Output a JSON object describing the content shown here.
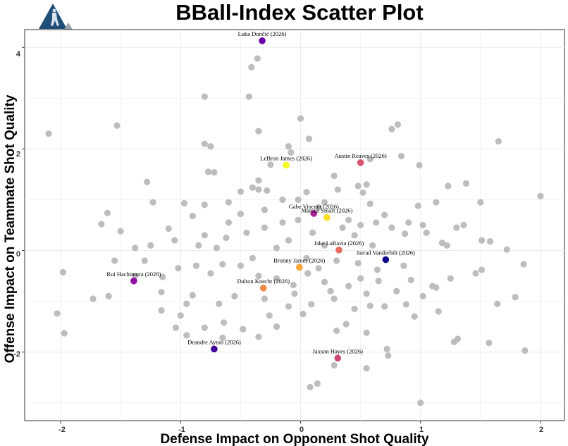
{
  "chart_data": {
    "type": "scatter",
    "title": "BBall-Index Scatter Plot",
    "xlabel": "Defense Impact on Opponent Shot Quality",
    "ylabel": "Offense Impact on Teammate Shot Quality",
    "xlim": [
      -2.3,
      2.2
    ],
    "ylim": [
      -3.35,
      4.35
    ],
    "xticks": [
      -2,
      -1,
      0,
      1,
      2
    ],
    "yticks": [
      -2,
      0,
      2,
      4
    ],
    "grid": true,
    "background_color": "#bdbdbd",
    "highlighted": [
      {
        "name": "Luka Dončić (2026)",
        "x": -0.32,
        "y": 4.13,
        "color": "#6a00a8"
      },
      {
        "name": "Austin Reaves (2026)",
        "x": 0.5,
        "y": 1.73,
        "color": "#d5546e"
      },
      {
        "name": "LeBron James (2026)",
        "x": -0.12,
        "y": 1.68,
        "color": "#f0f921"
      },
      {
        "name": "Gabe Vincent (2026)",
        "x": 0.11,
        "y": 0.73,
        "color": "#a62098"
      },
      {
        "name": "Marcus Smart (2026)",
        "x": 0.22,
        "y": 0.65,
        "color": "#f9dd25"
      },
      {
        "name": "Jake LaRavia (2026)",
        "x": 0.32,
        "y": 0.01,
        "color": "#e66c5c"
      },
      {
        "name": "Jarrad Vanderbilt (2026)",
        "x": 0.71,
        "y": -0.18,
        "color": "#0d0887"
      },
      {
        "name": "Bronny James (2026)",
        "x": -0.01,
        "y": -0.33,
        "color": "#fca636"
      },
      {
        "name": "Dalton Knecht (2026)",
        "x": -0.31,
        "y": -0.74,
        "color": "#f48849"
      },
      {
        "name": "Rui Hachimura (2026)",
        "x": -1.39,
        "y": -0.6,
        "color": "#8f0da4"
      },
      {
        "name": "Deandre Ayton (2026)",
        "x": -0.72,
        "y": -1.94,
        "color": "#41049d"
      },
      {
        "name": "Jaxson Hayes (2026)",
        "x": 0.31,
        "y": -2.12,
        "color": "#cc4778"
      }
    ],
    "background": [
      [
        -2.1,
        2.3
      ],
      [
        -1.53,
        2.46
      ],
      [
        -0.8,
        3.03
      ],
      [
        -0.43,
        3.03
      ],
      [
        -0.41,
        3.61
      ],
      [
        -0.36,
        3.78
      ],
      [
        0,
        2.6
      ],
      [
        0.07,
        2.2
      ],
      [
        -0.35,
        2.35
      ],
      [
        -0.8,
        2.1
      ],
      [
        -0.75,
        2.05
      ],
      [
        -0.1,
        2.05
      ],
      [
        -0.08,
        1.93
      ],
      [
        0.76,
        2.39
      ],
      [
        0.81,
        2.48
      ],
      [
        1.65,
        2.15
      ],
      [
        0.84,
        1.86
      ],
      [
        0.58,
        1.8
      ],
      [
        0.99,
        1.68
      ],
      [
        -1.28,
        1.35
      ],
      [
        -0.77,
        1.55
      ],
      [
        -0.72,
        1.54
      ],
      [
        -0.25,
        1.69
      ],
      [
        -0.35,
        1.38
      ],
      [
        0.28,
        1.47
      ],
      [
        0.48,
        1.27
      ],
      [
        0.55,
        1.3
      ],
      [
        -1.23,
        0.95
      ],
      [
        -1.61,
        0.74
      ],
      [
        -1.66,
        0.52
      ],
      [
        -0.97,
        0.93
      ],
      [
        -0.9,
        0.68
      ],
      [
        -0.8,
        0.9
      ],
      [
        -0.6,
        0.95
      ],
      [
        -0.5,
        1.16
      ],
      [
        -0.4,
        1.24
      ],
      [
        -0.35,
        1.2
      ],
      [
        -0.28,
        1.18
      ],
      [
        -0.15,
        1.0
      ],
      [
        -0.02,
        1.0
      ],
      [
        0.05,
        1.15
      ],
      [
        0.2,
        0.95
      ],
      [
        0.31,
        1.2
      ],
      [
        0.52,
        1.14
      ],
      [
        0.58,
        0.92
      ],
      [
        0.98,
        0.88
      ],
      [
        1.13,
        0.95
      ],
      [
        1.5,
        0.95
      ],
      [
        2.0,
        1.07
      ],
      [
        1.23,
        1.27
      ],
      [
        1.38,
        1.32
      ],
      [
        0.63,
        0.55
      ],
      [
        0.76,
        0.45
      ],
      [
        0.87,
        0.33
      ],
      [
        1.05,
        0.35
      ],
      [
        1.3,
        0.45
      ],
      [
        1.36,
        0.5
      ],
      [
        1.58,
        0.18
      ],
      [
        1.51,
        0.2
      ],
      [
        1.72,
        0.02
      ],
      [
        1.86,
        -0.27
      ],
      [
        1.79,
        -0.92
      ],
      [
        1.64,
        -1.05
      ],
      [
        1.46,
        -0.45
      ],
      [
        1.51,
        -0.38
      ],
      [
        1.25,
        -0.55
      ],
      [
        1.13,
        -0.73
      ],
      [
        1.1,
        -0.7
      ],
      [
        0.92,
        -0.58
      ],
      [
        0.86,
        -0.3
      ],
      [
        0.64,
        -0.38
      ],
      [
        0.55,
        -0.85
      ],
      [
        0.4,
        -0.7
      ],
      [
        0.28,
        -0.95
      ],
      [
        0.2,
        -0.62
      ],
      [
        0.06,
        -0.45
      ],
      [
        -0.06,
        -0.68
      ],
      [
        -0.2,
        -0.55
      ],
      [
        -0.35,
        -0.5
      ],
      [
        -0.5,
        -0.3
      ],
      [
        -0.65,
        -0.27
      ],
      [
        -0.75,
        -0.45
      ],
      [
        -0.87,
        -0.3
      ],
      [
        -1.02,
        -0.35
      ],
      [
        -1.15,
        -0.52
      ],
      [
        -1.55,
        -0.2
      ],
      [
        -1.98,
        -0.43
      ],
      [
        -2.03,
        -1.24
      ],
      [
        -1.97,
        -1.63
      ],
      [
        -1.73,
        -0.95
      ],
      [
        -1.6,
        -0.9
      ],
      [
        -1.16,
        -0.82
      ],
      [
        -1.16,
        -1.18
      ],
      [
        -1.04,
        -1.52
      ],
      [
        -0.95,
        -1.67
      ],
      [
        -0.8,
        -1.52
      ],
      [
        -0.65,
        -1.72
      ],
      [
        -0.48,
        -1.55
      ],
      [
        -0.35,
        -1.7
      ],
      [
        -0.2,
        -1.5
      ],
      [
        -0.1,
        -1.1
      ],
      [
        0.02,
        -1.25
      ],
      [
        0.3,
        -1.58
      ],
      [
        0.38,
        -1.45
      ],
      [
        0.55,
        -1.62
      ],
      [
        0.72,
        -1.94
      ],
      [
        0.73,
        -2.07
      ],
      [
        1.28,
        -1.8
      ],
      [
        1.31,
        -1.74
      ],
      [
        1.57,
        -1.82
      ],
      [
        1.87,
        -1.97
      ],
      [
        0.28,
        -2.26
      ],
      [
        0.55,
        -2.32
      ],
      [
        0.14,
        -2.62
      ],
      [
        0.08,
        -2.69
      ],
      [
        1.0,
        -3.0
      ],
      [
        -1.38,
        -0.5
      ],
      [
        -1.0,
        -1.28
      ],
      [
        -0.64,
        -1.42
      ],
      [
        -0.26,
        -1.28
      ],
      [
        0.09,
        -1.06
      ],
      [
        0.58,
        -1.09
      ],
      [
        0.88,
        -1.06
      ],
      [
        1.02,
        -0.9
      ],
      [
        0.15,
        -0.35
      ],
      [
        0.3,
        -0.2
      ],
      [
        0.48,
        -0.25
      ],
      [
        -0.45,
        0.35
      ],
      [
        -0.3,
        0.45
      ],
      [
        -0.62,
        0.25
      ],
      [
        -0.8,
        0.3
      ],
      [
        -1.05,
        0.2
      ],
      [
        -1.25,
        0.1
      ],
      [
        -1.38,
        0.05
      ],
      [
        -1.5,
        0.38
      ],
      [
        -1.1,
        0.43
      ],
      [
        -0.5,
        0.72
      ],
      [
        -0.3,
        0.8
      ],
      [
        -0.15,
        0.55
      ],
      [
        0.4,
        0.6
      ],
      [
        0.5,
        0.5
      ],
      [
        0.7,
        0.7
      ],
      [
        0.9,
        0.55
      ],
      [
        1.18,
        0.15
      ],
      [
        1.22,
        0.1
      ],
      [
        0.1,
        0.35
      ],
      [
        -0.1,
        0.2
      ],
      [
        -0.2,
        0.05
      ],
      [
        0.2,
        0.1
      ],
      [
        0.45,
        0.3
      ],
      [
        0.6,
        0.1
      ],
      [
        -0.9,
        -0.88
      ],
      [
        -0.55,
        -0.9
      ],
      [
        -0.05,
        -0.85
      ],
      [
        0.25,
        -0.8
      ],
      [
        0.45,
        -1.15
      ],
      [
        0.7,
        -1.1
      ],
      [
        -0.3,
        -0.95
      ],
      [
        -1.3,
        -0.2
      ],
      [
        1.15,
        -1.2
      ],
      [
        0.95,
        -1.3
      ],
      [
        0.5,
        -0.55
      ],
      [
        -0.68,
        -1.05
      ],
      [
        -0.95,
        -1.05
      ],
      [
        0.65,
        -0.6
      ],
      [
        0.8,
        -0.8
      ],
      [
        -0.02,
        0.6
      ],
      [
        0.15,
        0.85
      ],
      [
        -0.6,
        0.55
      ],
      [
        -0.7,
        0.05
      ],
      [
        -0.4,
        -0.15
      ],
      [
        0.05,
        -0.15
      ],
      [
        -0.85,
        0.1
      ],
      [
        1.02,
        0.5
      ],
      [
        0.35,
        0.45
      ]
    ]
  },
  "axes": {
    "x_tick_labels": [
      "-2",
      "-1",
      "0",
      "1",
      "2"
    ],
    "y_tick_labels": [
      "-2",
      "0",
      "2",
      "4"
    ]
  }
}
